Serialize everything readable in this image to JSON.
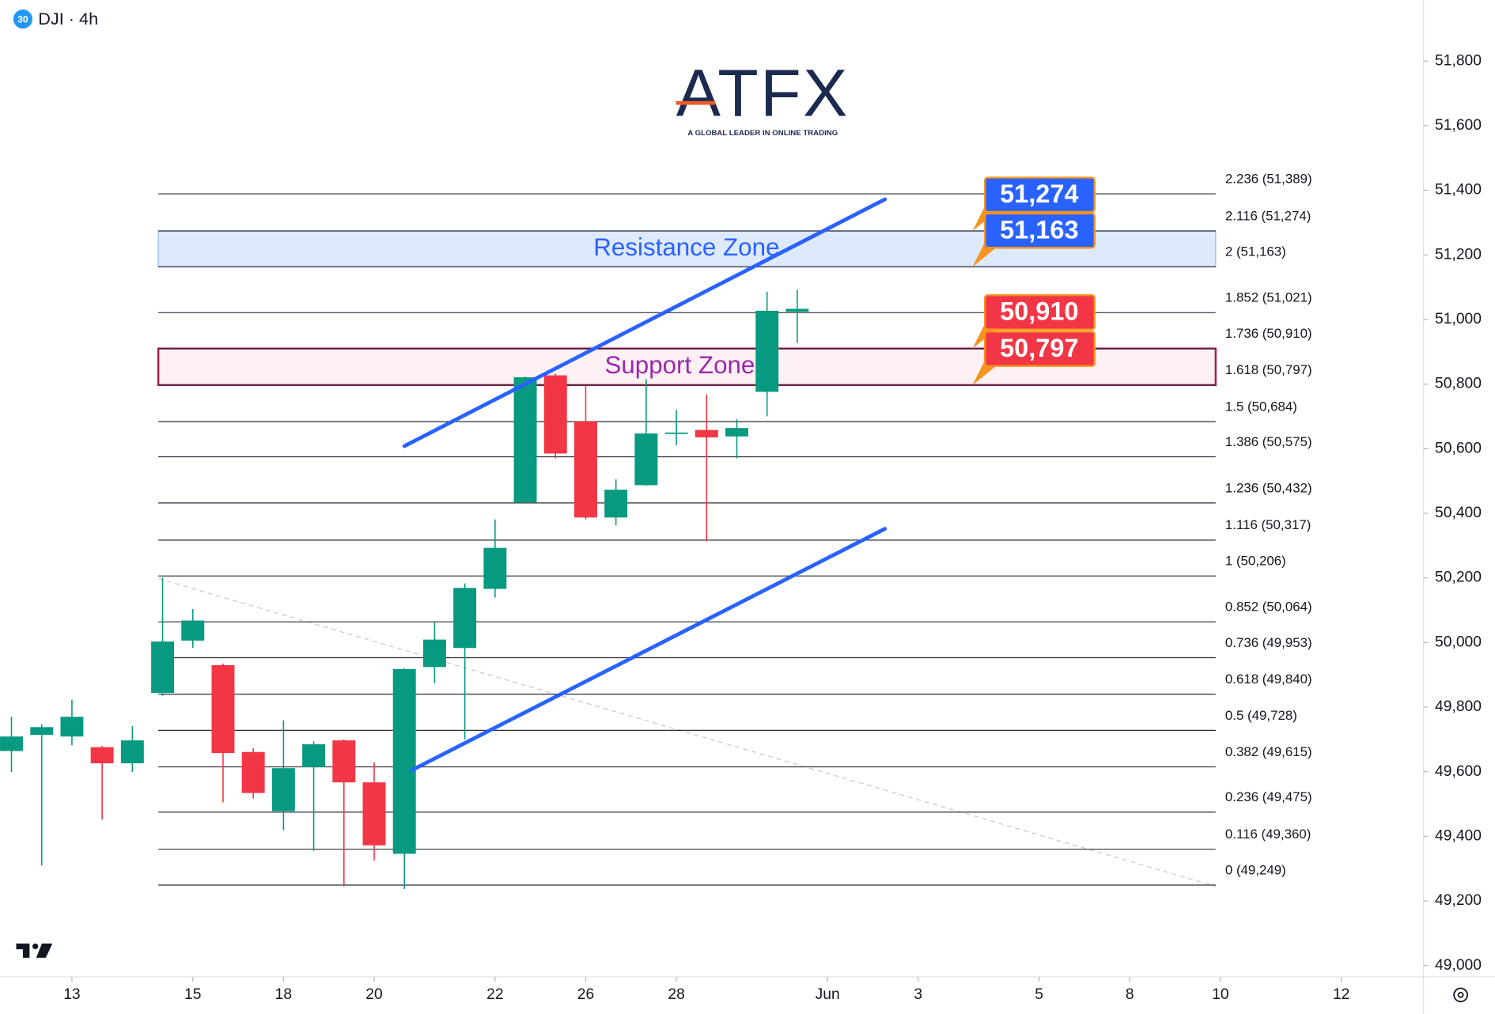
{
  "header": {
    "badge": "30",
    "symbol": "DJI · 4h"
  },
  "logo": {
    "name": "ATFX",
    "tagline": "A GLOBAL LEADER IN ONLINE TRADING"
  },
  "chart_data": {
    "type": "candlestick",
    "x": [
      0,
      1,
      2,
      3,
      4,
      5,
      6,
      7,
      8,
      9,
      10,
      11,
      12,
      13,
      14,
      15,
      16,
      17,
      18,
      19,
      20,
      21,
      22,
      23,
      24,
      25,
      26
    ],
    "open": [
      49664,
      49714,
      49709,
      49676,
      49626,
      49844,
      50006,
      49930,
      49661,
      49478,
      49614,
      49697,
      49567,
      49346,
      49924,
      49983,
      50166,
      50434,
      50827,
      50685,
      50387,
      50487,
      50647,
      50658,
      50638,
      50776,
      51024
    ],
    "high": [
      49770,
      49747,
      49823,
      49680,
      49741,
      50201,
      50104,
      49935,
      49673,
      49759,
      49694,
      49700,
      49629,
      49920,
      50062,
      50183,
      50381,
      50823,
      50832,
      50794,
      50505,
      50815,
      50720,
      50768,
      50691,
      51086,
      51092
    ],
    "low": [
      49599,
      49310,
      49682,
      49452,
      49599,
      49835,
      49983,
      49505,
      49517,
      49419,
      49355,
      49245,
      49325,
      49237,
      49874,
      49700,
      50139,
      50432,
      50570,
      50381,
      50363,
      50485,
      50611,
      50313,
      50570,
      50700,
      50927
    ],
    "close": [
      49709,
      49738,
      49770,
      49626,
      49697,
      50003,
      50068,
      49658,
      49534,
      49611,
      49685,
      49567,
      49372,
      49918,
      50009,
      50169,
      50293,
      50821,
      50585,
      50387,
      50473,
      50647,
      50650,
      50635,
      50664,
      51027,
      51033
    ],
    "up_color": "#089981",
    "down_color": "#f23645",
    "xlim": [
      -0.38,
      46.72
    ],
    "xticks": [
      {
        "value": 2,
        "label": "13"
      },
      {
        "value": 6,
        "label": "15"
      },
      {
        "value": 9,
        "label": "18"
      },
      {
        "value": 12,
        "label": "20"
      },
      {
        "value": 16,
        "label": "22"
      },
      {
        "value": 19,
        "label": "26"
      },
      {
        "value": 22,
        "label": "28"
      },
      {
        "value": 27,
        "label": "Jun"
      },
      {
        "value": 30,
        "label": "3"
      },
      {
        "value": 34,
        "label": "5"
      },
      {
        "value": 37,
        "label": "8"
      },
      {
        "value": 40,
        "label": "10"
      },
      {
        "value": 44,
        "label": "12"
      }
    ],
    "ylim": [
      48965,
      51989
    ],
    "yticks": [
      {
        "value": 49000,
        "label": "49,000"
      },
      {
        "value": 49200,
        "label": "49,200"
      },
      {
        "value": 49400,
        "label": "49,400"
      },
      {
        "value": 49600,
        "label": "49,600"
      },
      {
        "value": 49800,
        "label": "49,800"
      },
      {
        "value": 50000,
        "label": "50,000"
      },
      {
        "value": 50200,
        "label": "50,200"
      },
      {
        "value": 50400,
        "label": "50,400"
      },
      {
        "value": 50600,
        "label": "50,600"
      },
      {
        "value": 50800,
        "label": "50,800"
      },
      {
        "value": 51000,
        "label": "51,000"
      },
      {
        "value": 51200,
        "label": "51,200"
      },
      {
        "value": 51400,
        "label": "51,400"
      },
      {
        "value": 51600,
        "label": "51,600"
      },
      {
        "value": 51800,
        "label": "51,800"
      }
    ],
    "fib": [
      {
        "value": 51389,
        "label": "2.236 (51,389)"
      },
      {
        "value": 51274,
        "label": "2.116 (51,274)"
      },
      {
        "value": 51163,
        "label": "2 (51,163)"
      },
      {
        "value": 51021,
        "label": "1.852 (51,021)"
      },
      {
        "value": 50910,
        "label": "1.736 (50,910)"
      },
      {
        "value": 50797,
        "label": "1.618 (50,797)"
      },
      {
        "value": 50684,
        "label": "1.5 (50,684)"
      },
      {
        "value": 50575,
        "label": "1.386 (50,575)"
      },
      {
        "value": 50432,
        "label": "1.236 (50,432)"
      },
      {
        "value": 50317,
        "label": "1.116 (50,317)"
      },
      {
        "value": 50206,
        "label": "1 (50,206)"
      },
      {
        "value": 50064,
        "label": "0.852 (50,064)"
      },
      {
        "value": 49953,
        "label": "0.736 (49,953)"
      },
      {
        "value": 49840,
        "label": "0.618 (49,840)"
      },
      {
        "value": 49728,
        "label": "0.5 (49,728)"
      },
      {
        "value": 49615,
        "label": "0.382 (49,615)"
      },
      {
        "value": 49475,
        "label": "0.236 (49,475)"
      },
      {
        "value": 49360,
        "label": "0.116 (49,360)"
      },
      {
        "value": 49249,
        "label": "0 (49,249)"
      }
    ],
    "zones": [
      {
        "label": "Resistance Zone",
        "range": [
          51163,
          51274
        ],
        "fill": "#dde9fc",
        "border": "#9db6e6",
        "text_color": "#2962ff"
      },
      {
        "label": "Support Zone",
        "range": [
          50797,
          50910
        ],
        "fill": "#fdf1f4",
        "border": "#b0174e",
        "text_color": "#9c27b0"
      }
    ],
    "trend_lines": [
      {
        "x": [
          13,
          28.9
        ],
        "y": [
          50608,
          51372
        ],
        "color": "#2962ff"
      },
      {
        "x": [
          13.25,
          28.9
        ],
        "y": [
          49605,
          50352
        ],
        "color": "#2962ff"
      }
    ],
    "guide_line": {
      "x": [
        4.86,
        39.85
      ],
      "y": [
        50198,
        49245
      ],
      "color": "#c8c8c8"
    },
    "price_tags": {
      "values": [
        51274,
        51163,
        50910,
        50797
      ],
      "value_labels": [
        "51,274",
        "51,163",
        "50,910",
        "50,797"
      ],
      "colors": [
        "#2962ff",
        "#2962ff",
        "#f23645",
        "#f23645"
      ],
      "border": "#f7931e"
    }
  }
}
